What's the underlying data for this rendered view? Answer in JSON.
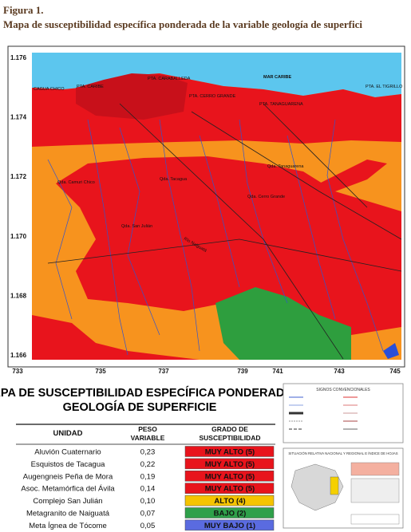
{
  "header": {
    "label": "Figura 1.",
    "title": "Mapa de susceptibilidad específica ponderada de la variable geología de superfici"
  },
  "map": {
    "y_labels": [
      "1.176",
      "1.174",
      "1.172",
      "1.170",
      "1.168",
      "1.166"
    ],
    "x_labels": [
      "733",
      "735",
      "737",
      "739",
      "741",
      "743",
      "745"
    ],
    "places": [
      "MAR CARIBE",
      "PTA. CARABALLEDA",
      "PTA. CARIBE",
      "PTA. CERRO GRANDE",
      "PTA. TANAGUARENA",
      "PTA. EL TIGRILLO",
      "CAGUA CHICO",
      "Qda. Camuri Chico",
      "Qda. Tacagua",
      "Qda. San Julián",
      "Qda. Cerro Grande",
      "Qda. Tanaguarena",
      "Río Naiguatá"
    ]
  },
  "legend": {
    "title": "MAPA DE SUSCEPTIBILIDAD ESPECÍFICA PONDERADA: GEOLOGÍA DE SUPERFICIE",
    "headers": [
      "UNIDAD",
      "PESO VARIABLE",
      "GRADO DE SUSCEPTIBILIDAD"
    ],
    "rows": [
      {
        "unidad": "Aluvión Cuaternario",
        "peso": "0,23",
        "grado": "MUY ALTO (5)",
        "color": "#e8141c"
      },
      {
        "unidad": "Esquistos de Tacagua",
        "peso": "0,22",
        "grado": "MUY ALTO (5)",
        "color": "#e8141c"
      },
      {
        "unidad": "Augengneis Peña de Mora",
        "peso": "0,19",
        "grado": "MUY ALTO (5)",
        "color": "#e8141c"
      },
      {
        "unidad": "Asoc. Metamórfica del Ávila",
        "peso": "0,14",
        "grado": "MUY ALTO (5)",
        "color": "#e8141c"
      },
      {
        "unidad": "Complejo San Julián",
        "peso": "0,10",
        "grado": "ALTO (4)",
        "color": "#f5c400"
      },
      {
        "unidad": "Metagranito de Naiguatá",
        "peso": "0,07",
        "grado": "BAJO (2)",
        "color": "#2ea04a"
      },
      {
        "unidad": "Meta Ígnea de Tócome",
        "peso": "0,05",
        "grado": "MUY BAJO (1)",
        "color": "#5a6be0"
      }
    ]
  },
  "signs": {
    "title": "SIGNOS CONVENCIONALES"
  },
  "location": {
    "title": "SITUACIÓN RELATIVA NACIONAL Y REGIONAL E ÍNDICE DE HOJAS"
  }
}
